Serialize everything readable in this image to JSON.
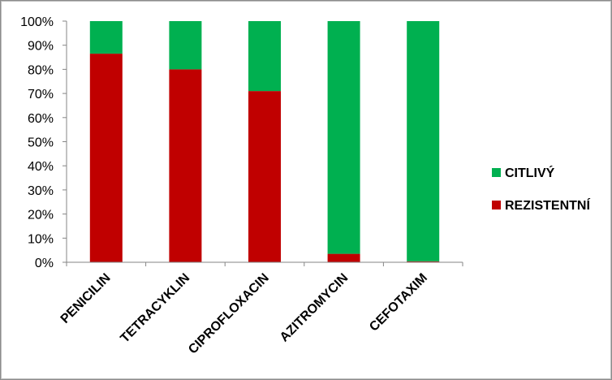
{
  "chart_data": {
    "type": "bar",
    "stacked": true,
    "normalized_percent": true,
    "categories": [
      "PENICILIN",
      "TETRACYKLIN",
      "CIPROFLOXACIN",
      "AZITROMYCIN",
      "CEFOTAXIM"
    ],
    "series": [
      {
        "name": "REZISTENTNÍ",
        "color": "#c00000",
        "values": [
          86.5,
          80,
          71,
          3.5,
          0.4
        ]
      },
      {
        "name": "CITLIVÝ",
        "color": "#00b050",
        "values": [
          13.5,
          20,
          29,
          96.5,
          99.6
        ]
      }
    ],
    "ylim": [
      0,
      100
    ],
    "yticks": [
      "0%",
      "10%",
      "20%",
      "30%",
      "40%",
      "50%",
      "60%",
      "70%",
      "80%",
      "90%",
      "100%"
    ],
    "title": "",
    "xlabel": "",
    "ylabel": "",
    "grid": false,
    "legend_position": "right",
    "legend_order": [
      "CITLIVÝ",
      "REZISTENTNÍ"
    ]
  }
}
